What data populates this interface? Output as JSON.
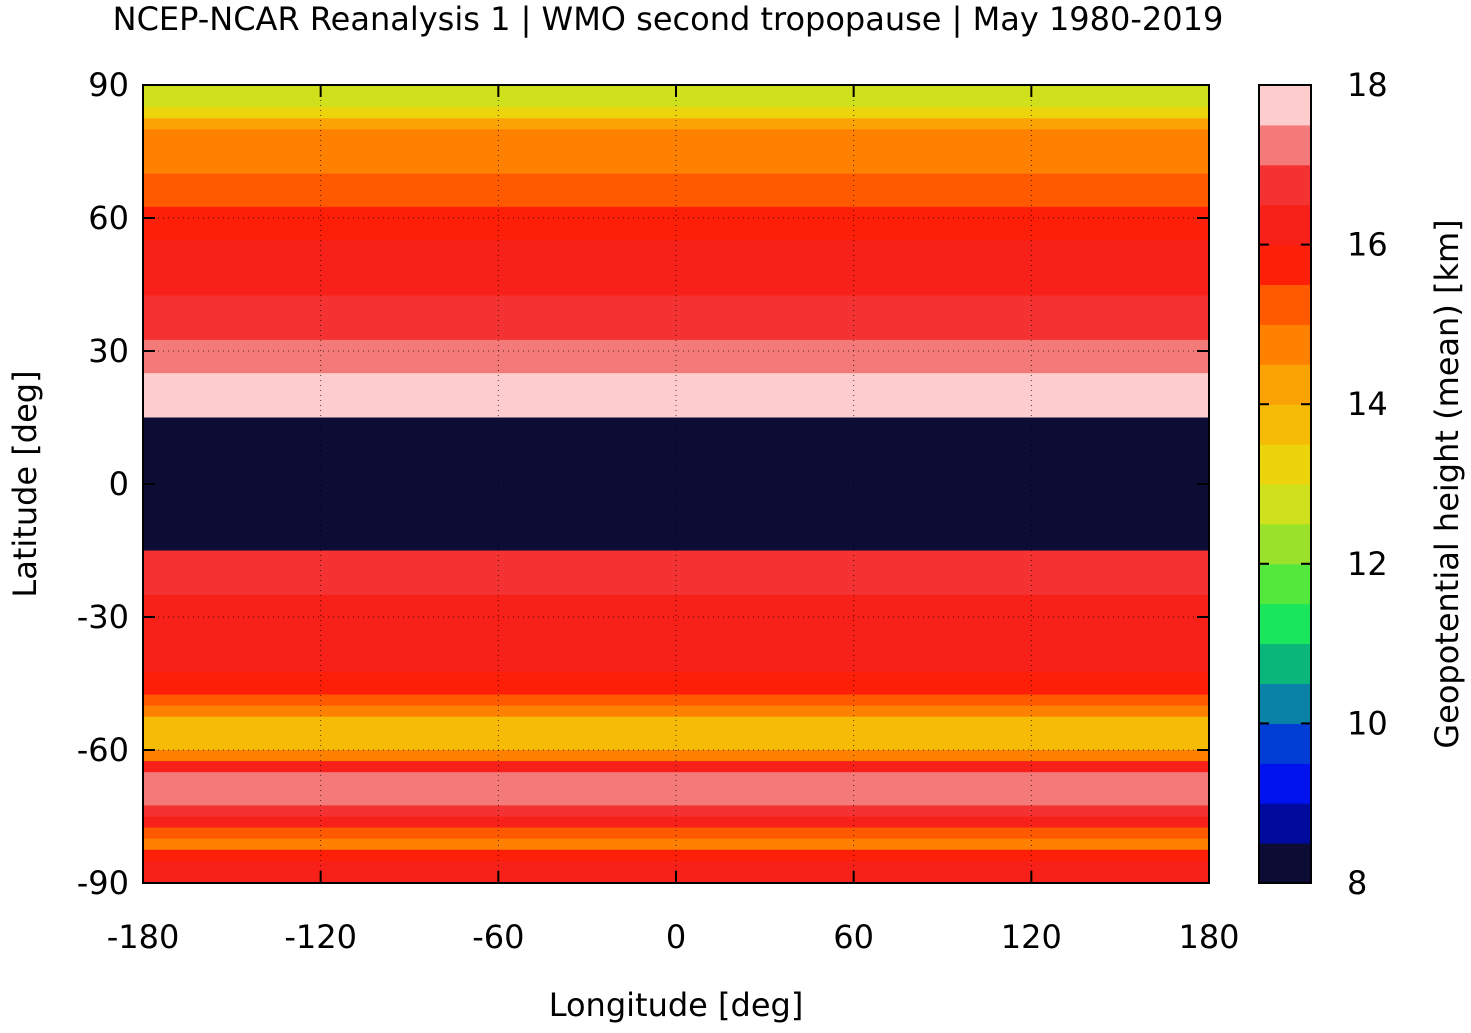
{
  "chart_data": {
    "type": "heatmap",
    "title": "NCEP-NCAR Reanalysis 1 | WMO second tropopause | May 1980-2019",
    "xlabel": "Longitude [deg]",
    "ylabel": "Latitude [deg]",
    "xlim": [
      -180,
      180
    ],
    "ylim": [
      -90,
      90
    ],
    "xticks": [
      -180,
      -120,
      -60,
      0,
      60,
      120,
      180
    ],
    "yticks": [
      -90,
      -60,
      -30,
      0,
      30,
      60,
      90
    ],
    "xtick_labels": [
      "-180",
      "-120",
      "-60",
      "0",
      "60",
      "120",
      "180"
    ],
    "ytick_labels": [
      "-90",
      "-60",
      "-30",
      "0",
      "30",
      "60",
      "90"
    ],
    "grid": true,
    "colorbar": {
      "label": "Geopotential height (mean) [km]",
      "range": [
        8,
        18
      ],
      "ticks": [
        8,
        10,
        12,
        14,
        16,
        18
      ],
      "tick_labels": [
        "8",
        "10",
        "12",
        "14",
        "16",
        "18"
      ],
      "colors": [
        "#0c0c35",
        "#000a9c",
        "#0012ee",
        "#003ed6",
        "#0a82a8",
        "#0bb67a",
        "#19e65a",
        "#55e83c",
        "#99e12a",
        "#cfe01c",
        "#ecd40d",
        "#f6bb06",
        "#fba304",
        "#fe8102",
        "#ff5a00",
        "#fe1f08",
        "#f82119",
        "#f43232",
        "#f47a7a",
        "#fdcdcd"
      ]
    },
    "zonal_mean_profile": {
      "description_units": "km",
      "lat": [
        90,
        85,
        80,
        75,
        70,
        65,
        60,
        55,
        50,
        45,
        40,
        35,
        30,
        25,
        20,
        15,
        10,
        5,
        0,
        -5,
        -10,
        -15,
        -20,
        -25,
        -30,
        -35,
        -40,
        -45,
        -50,
        -55,
        -60,
        -65,
        -70,
        -75,
        -80,
        -85,
        -90
      ],
      "height_km": [
        null,
        12.5,
        14.5,
        14.8,
        15.0,
        15.2,
        15.8,
        16.0,
        16.1,
        16.3,
        16.6,
        16.9,
        17.2,
        17.5,
        17.6,
        null,
        null,
        null,
        null,
        null,
        null,
        null,
        16.8,
        16.5,
        16.3,
        16.2,
        16.1,
        15.8,
        15.0,
        13.5,
        14.0,
        17.2,
        17.5,
        16.5,
        14.5,
        16.4,
        16.2
      ]
    }
  }
}
